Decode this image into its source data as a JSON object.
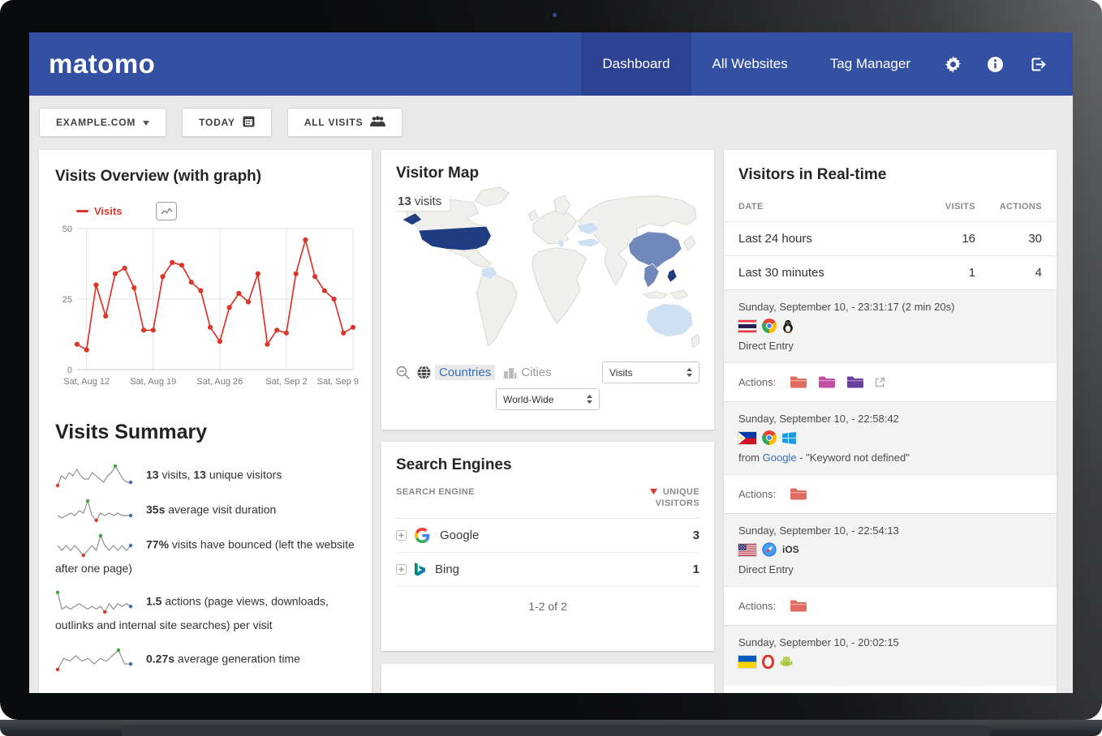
{
  "navbar": {
    "logo": "matomo",
    "items": [
      {
        "label": "Dashboard",
        "active": true
      },
      {
        "label": "All Websites",
        "active": false
      },
      {
        "label": "Tag Manager",
        "active": false
      }
    ],
    "icon_buttons": [
      "settings",
      "info",
      "logout"
    ]
  },
  "toolbar": {
    "site_selector": "EXAMPLE.COM",
    "period": "TODAY",
    "segment": "ALL VISITS"
  },
  "visits_overview": {
    "title": "Visits Overview (with graph)",
    "legend": "Visits",
    "chart_data": {
      "type": "line",
      "series_name": "Visits",
      "values": [
        9,
        7,
        30,
        19,
        34,
        36,
        29,
        14,
        14,
        33,
        38,
        37,
        31,
        28,
        15,
        10,
        22,
        27,
        24,
        34,
        9,
        14,
        13,
        34,
        46,
        33,
        28,
        25,
        13,
        15
      ],
      "x_tick_labels": [
        "Sat, Aug 12",
        "Sat, Aug 19",
        "Sat, Aug 26",
        "Sat, Sep 2",
        "Sat, Sep 9"
      ],
      "x_tick_indices": [
        1,
        8,
        15,
        22,
        29
      ],
      "y_ticks": [
        0,
        25,
        50
      ],
      "ylim": [
        0,
        50
      ],
      "line_color": "#d9372a"
    }
  },
  "visits_summary": {
    "title": "Visits Summary",
    "rows": [
      {
        "segments": [
          {
            "t": "13",
            "b": true
          },
          {
            "t": " visits, "
          },
          {
            "t": "13",
            "b": true
          },
          {
            "t": " unique visitors"
          }
        ],
        "spark": [
          2,
          5,
          4,
          6,
          5,
          7,
          5,
          4,
          4,
          6,
          5,
          4,
          3,
          5,
          6,
          8,
          6,
          4,
          3,
          3
        ]
      },
      {
        "segments": [
          {
            "t": "35s",
            "b": true
          },
          {
            "t": " average visit duration"
          }
        ],
        "spark": [
          3,
          2,
          3,
          4,
          3,
          5,
          4,
          9,
          3,
          1,
          4,
          3,
          4,
          3,
          4,
          3,
          3,
          3
        ]
      },
      {
        "segments": [
          {
            "t": "77%",
            "b": true
          },
          {
            "t": " visits have bounced (left the website after one page)"
          }
        ],
        "spark": [
          6,
          5,
          6,
          5,
          6,
          5,
          4,
          5,
          6,
          5,
          8,
          6,
          5,
          6,
          5,
          6,
          5,
          6
        ]
      },
      {
        "segments": [
          {
            "t": "1.5",
            "b": true
          },
          {
            "t": " actions (page views, downloads, outlinks and internal site searches) per visit"
          }
        ],
        "spark": [
          9,
          3,
          4,
          3,
          4,
          5,
          4,
          3,
          4,
          3,
          4,
          2,
          5,
          3,
          5,
          4,
          5,
          4
        ]
      },
      {
        "segments": [
          {
            "t": "0.27s",
            "b": true
          },
          {
            "t": " average generation time"
          }
        ],
        "spark": [
          1,
          5,
          4,
          6,
          4,
          5,
          3,
          5,
          4,
          6,
          8,
          3,
          3
        ]
      }
    ]
  },
  "visitor_map": {
    "title": "Visitor Map",
    "tooltip_value": "13",
    "tooltip_label": " visits",
    "countries_label": "Countries",
    "cities_label": "Cities",
    "metric_select": "Visits",
    "region_select": "World-Wide",
    "highlighted_countries": [
      {
        "name": "United States",
        "level": "high"
      },
      {
        "name": "China",
        "level": "medium"
      },
      {
        "name": "Thailand/Vietnam",
        "level": "medium"
      },
      {
        "name": "Philippines",
        "level": "high"
      },
      {
        "name": "Ukraine",
        "level": "low"
      },
      {
        "name": "Turkey",
        "level": "low"
      },
      {
        "name": "Italy",
        "level": "low"
      },
      {
        "name": "Colombia",
        "level": "low"
      },
      {
        "name": "Australia",
        "level": "low"
      }
    ]
  },
  "search_engines": {
    "title": "Search Engines",
    "col_engine": "SEARCH ENGINE",
    "col_metric_line1": "UNIQUE",
    "col_metric_line2": "VISITORS",
    "rows": [
      {
        "engine": "Google",
        "icon": "google",
        "value": "3"
      },
      {
        "engine": "Bing",
        "icon": "bing",
        "value": "1"
      }
    ],
    "pagination": "1-2 of 2"
  },
  "realtime": {
    "title": "Visitors in Real-time",
    "col_date": "DATE",
    "col_visits": "VISITS",
    "col_actions": "ACTIONS",
    "actions_label": "Actions:",
    "summary_rows": [
      {
        "label": "Last 24 hours",
        "visits": "16",
        "actions": "30"
      },
      {
        "label": "Last 30 minutes",
        "visits": "1",
        "actions": "4"
      }
    ],
    "visits": [
      {
        "datetime": "Sunday, September 10, - 23:31:17 (2 min 20s)",
        "icons": [
          "flag-thailand",
          "browser-chrome",
          "os-linux"
        ],
        "referrer": {
          "plain": "Direct Entry"
        },
        "actions": [
          "folder-red",
          "folder-magenta",
          "folder-purple",
          "external-link"
        ]
      },
      {
        "datetime": "Sunday, September 10, - 22:58:42",
        "icons": [
          "flag-philippines",
          "browser-chrome",
          "os-windows"
        ],
        "referrer": {
          "prefix": "from ",
          "link": "Google",
          "suffix": " - \"Keyword not defined\""
        },
        "actions": [
          "folder-red"
        ]
      },
      {
        "datetime": "Sunday, September 10, - 22:54:13",
        "icons": [
          "flag-usa",
          "browser-safari",
          "ios-label"
        ],
        "referrer": {
          "plain": "Direct Entry"
        },
        "actions": [
          "folder-red"
        ]
      },
      {
        "datetime": "Sunday, September 10, - 20:02:15",
        "icons": [
          "flag-ukraine",
          "browser-opera",
          "os-android"
        ],
        "referrer": null,
        "actions": []
      }
    ]
  },
  "colors": {
    "navbar": "#3450a3",
    "navbar_active": "#2c4392",
    "chart_red": "#d9372a",
    "sparkline": "#8b9196",
    "dot_min": "#d9372a",
    "dot_max": "#3fa33f",
    "dot_last": "#3b6fb5",
    "map_high": "#1f3d80",
    "map_mid": "#7089ba",
    "map_low": "#cfe0f3",
    "map_land": "#efefec",
    "folder_red": "#e06b60",
    "folder_magenta": "#bf4fa0",
    "folder_purple": "#6b3fa0"
  }
}
